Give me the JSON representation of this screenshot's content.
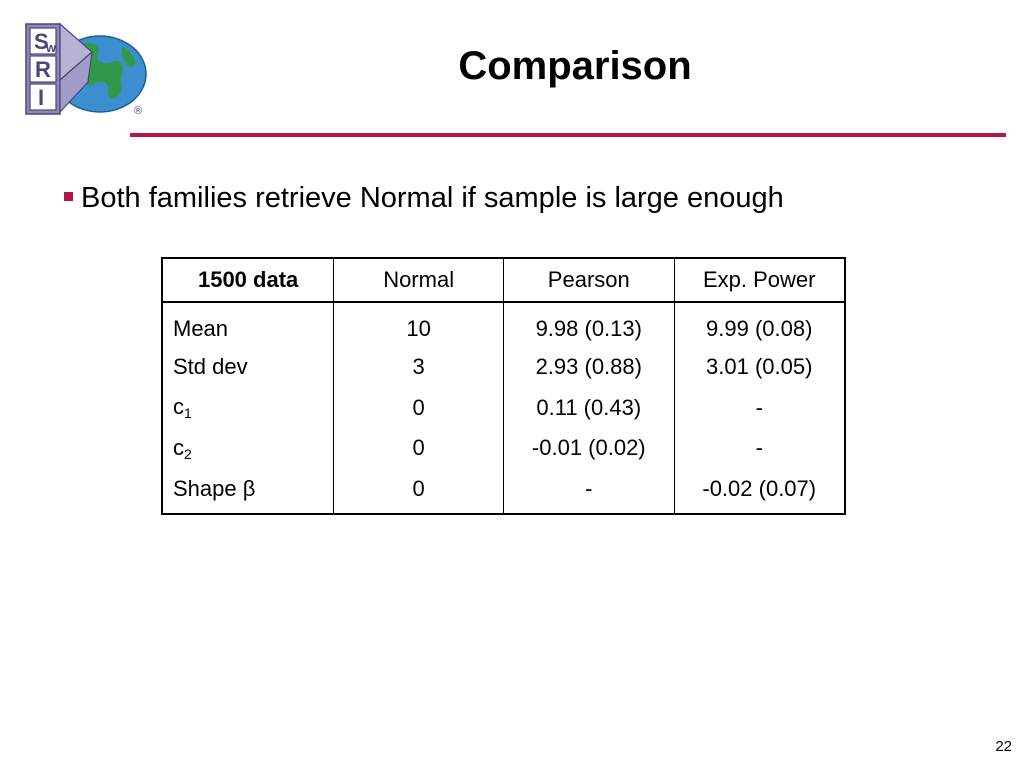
{
  "logo": {
    "letters": [
      "S",
      "w",
      "R",
      "I"
    ],
    "registered_mark": "®",
    "colors": {
      "frame": "#6e6a9a",
      "globe_ocean": "#3b8fd0",
      "land": "#2f9b4a"
    }
  },
  "slide": {
    "title": "Comparison",
    "bullet": "Both families retrieve Normal if sample is large enough",
    "page_number": "22",
    "accent_color": "#b5154b"
  },
  "table": {
    "headers": [
      "1500 data",
      "Normal",
      "Pearson",
      "Exp. Power"
    ],
    "rows": [
      {
        "label": "Mean",
        "sub": "",
        "normal": "10",
        "pearson": "9.98 (0.13)",
        "exp_power": "9.99 (0.08)"
      },
      {
        "label": "Std dev",
        "sub": "",
        "normal": "3",
        "pearson": "2.93 (0.88)",
        "exp_power": "3.01 (0.05)"
      },
      {
        "label": "c",
        "sub": "1",
        "normal": "0",
        "pearson": "0.11 (0.43)",
        "exp_power": "-"
      },
      {
        "label": "c",
        "sub": "2",
        "normal": "0",
        "pearson": "-0.01 (0.02)",
        "exp_power": "-"
      },
      {
        "label": "Shape β",
        "sub": "",
        "normal": "0",
        "pearson": "-",
        "exp_power": "-0.02 (0.07)"
      }
    ]
  }
}
